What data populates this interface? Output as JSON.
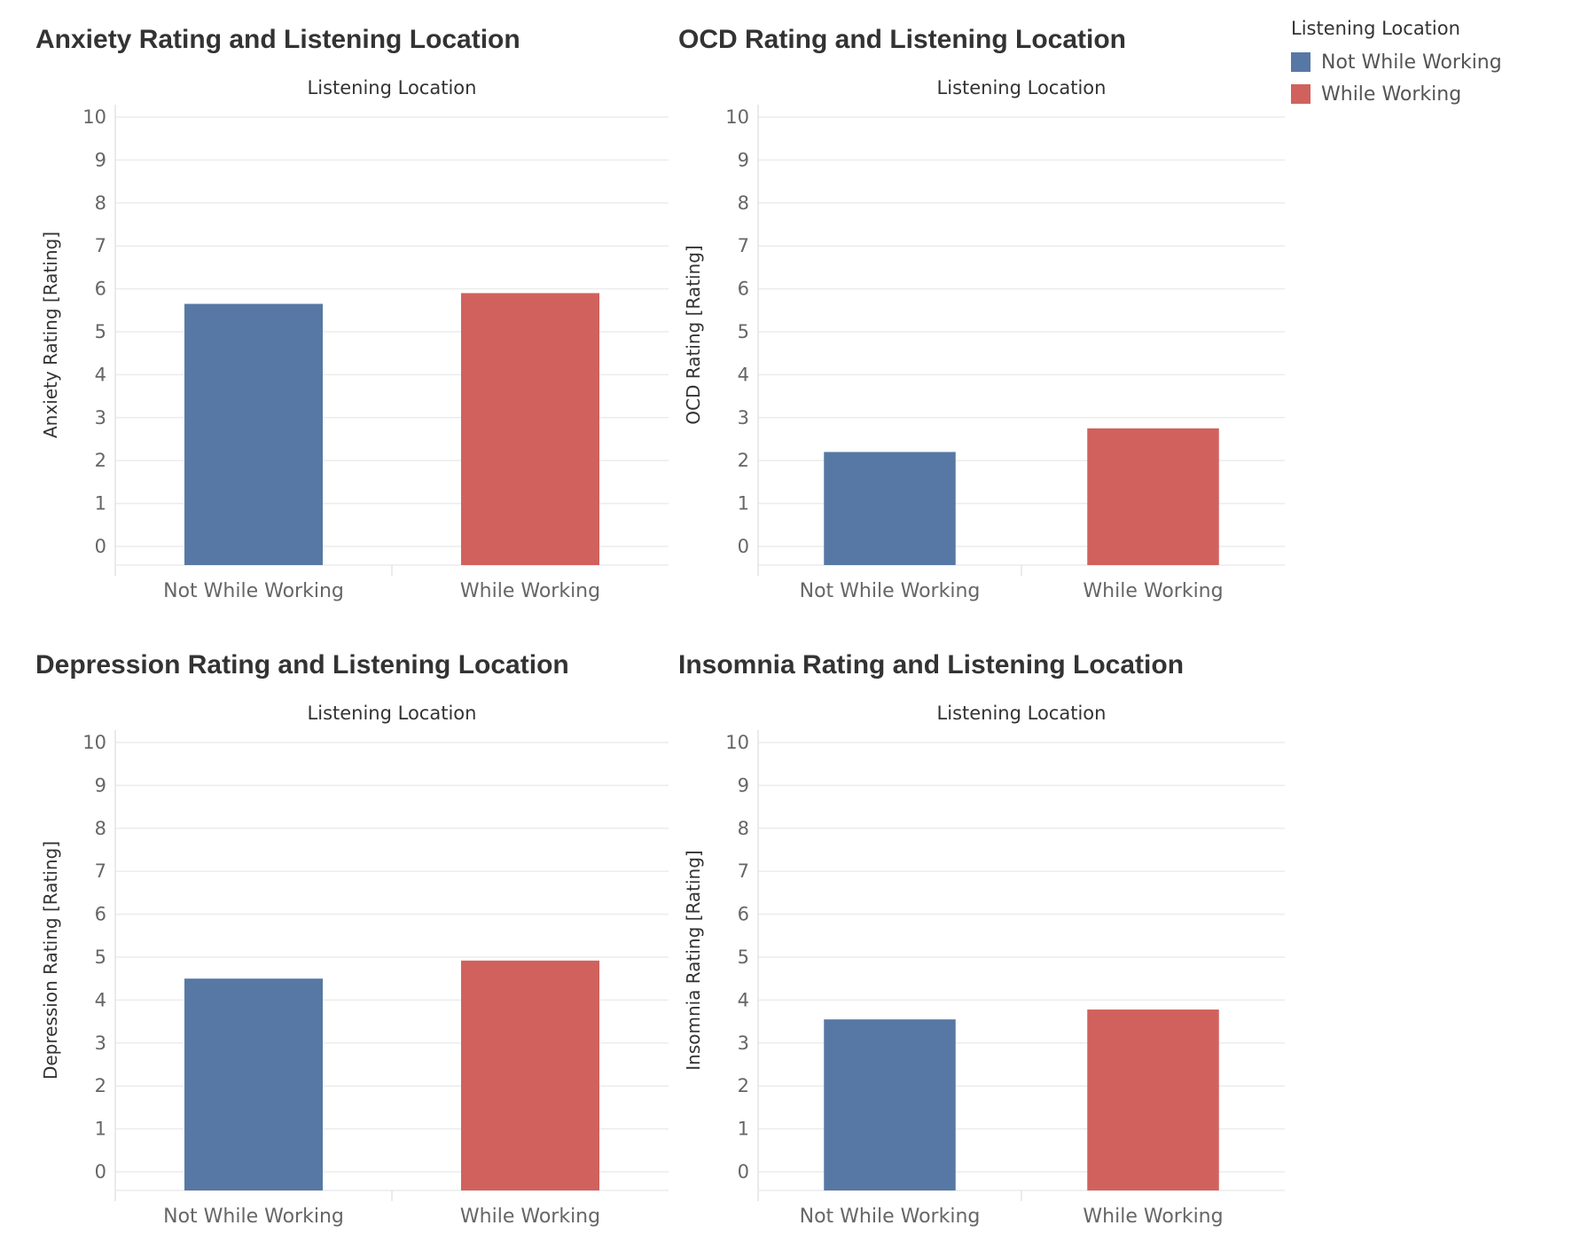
{
  "legend": {
    "title": "Listening Location",
    "items": [
      {
        "label": "Not While Working",
        "color": "#5778a4"
      },
      {
        "label": "While Working",
        "color": "#d1615d"
      }
    ]
  },
  "chart_data": [
    {
      "type": "bar",
      "title": "Anxiety Rating and Listening Location",
      "column_header": "Listening Location",
      "ylabel": "Anxiety Rating [Rating]",
      "categories": [
        "Not While Working",
        "While Working"
      ],
      "values": [
        5.65,
        5.9
      ],
      "colors": [
        "#5778a4",
        "#d1615d"
      ],
      "ylim": [
        0,
        10
      ],
      "yticks": [
        0,
        1,
        2,
        3,
        4,
        5,
        6,
        7,
        8,
        9,
        10
      ],
      "grid": true
    },
    {
      "type": "bar",
      "title": "OCD Rating and Listening Location",
      "column_header": "Listening Location",
      "ylabel": "OCD Rating [Rating]",
      "categories": [
        "Not While Working",
        "While Working"
      ],
      "values": [
        2.2,
        2.75
      ],
      "colors": [
        "#5778a4",
        "#d1615d"
      ],
      "ylim": [
        0,
        10
      ],
      "yticks": [
        0,
        1,
        2,
        3,
        4,
        5,
        6,
        7,
        8,
        9,
        10
      ],
      "grid": true
    },
    {
      "type": "bar",
      "title": "Depression Rating and Listening Location",
      "column_header": "Listening Location",
      "ylabel": "Depression Rating [Rating]",
      "categories": [
        "Not While Working",
        "While Working"
      ],
      "values": [
        4.5,
        4.92
      ],
      "colors": [
        "#5778a4",
        "#d1615d"
      ],
      "ylim": [
        0,
        10
      ],
      "yticks": [
        0,
        1,
        2,
        3,
        4,
        5,
        6,
        7,
        8,
        9,
        10
      ],
      "grid": true
    },
    {
      "type": "bar",
      "title": "Insomnia Rating and Listening Location",
      "column_header": "Listening Location",
      "ylabel": "Insomnia Rating [Rating]",
      "categories": [
        "Not While Working",
        "While Working"
      ],
      "values": [
        3.55,
        3.78
      ],
      "colors": [
        "#5778a4",
        "#d1615d"
      ],
      "ylim": [
        0,
        10
      ],
      "yticks": [
        0,
        1,
        2,
        3,
        4,
        5,
        6,
        7,
        8,
        9,
        10
      ],
      "grid": true
    }
  ]
}
